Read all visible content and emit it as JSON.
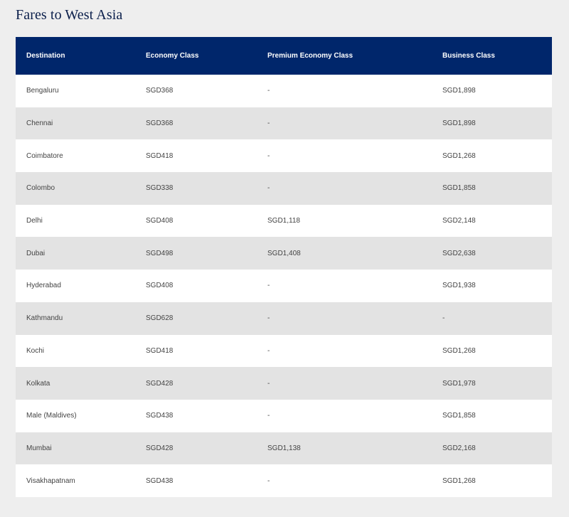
{
  "page": {
    "title": "Fares to West Asia"
  },
  "table": {
    "headers": {
      "destination": "Destination",
      "economy": "Economy Class",
      "premium": "Premium Economy Class",
      "business": "Business Class"
    },
    "rows": [
      {
        "destination": "Bengaluru",
        "economy": "SGD368",
        "premium": "-",
        "business": "SGD1,898"
      },
      {
        "destination": "Chennai",
        "economy": "SGD368",
        "premium": "-",
        "business": "SGD1,898"
      },
      {
        "destination": "Coimbatore",
        "economy": "SGD418",
        "premium": "-",
        "business": "SGD1,268"
      },
      {
        "destination": "Colombo",
        "economy": "SGD338",
        "premium": "-",
        "business": "SGD1,858"
      },
      {
        "destination": "Delhi",
        "economy": "SGD408",
        "premium": "SGD1,118",
        "business": "SGD2,148"
      },
      {
        "destination": "Dubai",
        "economy": "SGD498",
        "premium": "SGD1,408",
        "business": "SGD2,638"
      },
      {
        "destination": "Hyderabad",
        "economy": "SGD408",
        "premium": "-",
        "business": "SGD1,938"
      },
      {
        "destination": "Kathmandu",
        "economy": "SGD628",
        "premium": "-",
        "business": "-"
      },
      {
        "destination": "Kochi",
        "economy": "SGD418",
        "premium": "-",
        "business": "SGD1,268"
      },
      {
        "destination": "Kolkata",
        "economy": "SGD428",
        "premium": "-",
        "business": "SGD1,978"
      },
      {
        "destination": "Male (Maldives)",
        "economy": "SGD438",
        "premium": "-",
        "business": "SGD1,858"
      },
      {
        "destination": "Mumbai",
        "economy": "SGD428",
        "premium": "SGD1,138",
        "business": "SGD2,168"
      },
      {
        "destination": "Visakhapatnam",
        "economy": "SGD438",
        "premium": "-",
        "business": "SGD1,268"
      }
    ]
  },
  "colors": {
    "header_bg": "#00266b",
    "title_color": "#0b1f4b",
    "price_link": "#5b82c4",
    "row_alt": "#e3e3e3",
    "page_bg": "#eeeeee"
  }
}
